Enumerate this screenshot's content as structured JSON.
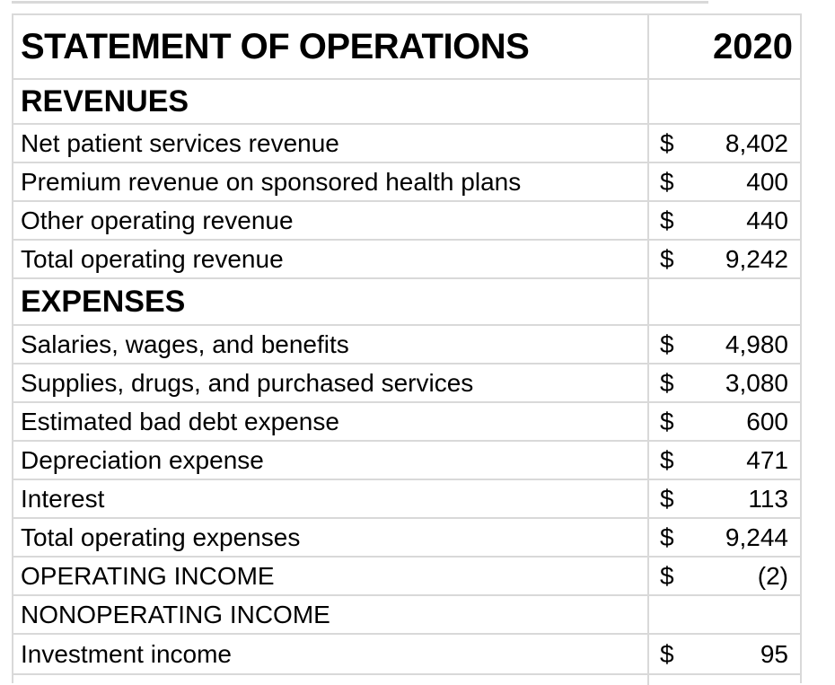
{
  "table": {
    "title": "STATEMENT OF OPERATIONS",
    "year": "2020",
    "currency_symbol": "$",
    "rows": [
      {
        "type": "section",
        "label": "REVENUES"
      },
      {
        "type": "data",
        "label": "Net patient services revenue",
        "value": "8,402"
      },
      {
        "type": "data",
        "label": "Premium revenue on sponsored health plans",
        "value": "400"
      },
      {
        "type": "data",
        "label": "Other operating revenue",
        "value": "440"
      },
      {
        "type": "data",
        "label": "Total operating revenue",
        "value": "9,242"
      },
      {
        "type": "section",
        "label": "EXPENSES"
      },
      {
        "type": "data",
        "label": "Salaries, wages, and benefits",
        "value": "4,980"
      },
      {
        "type": "data",
        "label": "Supplies, drugs, and purchased services",
        "value": "3,080"
      },
      {
        "type": "data",
        "label": "Estimated bad debt expense",
        "value": "600"
      },
      {
        "type": "data",
        "label": "Depreciation expense",
        "value": "471"
      },
      {
        "type": "data",
        "label": "Interest",
        "value": "113"
      },
      {
        "type": "data",
        "label": "Total operating expenses",
        "value": "9,244"
      },
      {
        "type": "data",
        "label": "OPERATING INCOME",
        "value": "(2)"
      },
      {
        "type": "header",
        "label": "NONOPERATING INCOME"
      },
      {
        "type": "data",
        "label": "Investment income",
        "value": "95"
      }
    ],
    "colors": {
      "border": "#d9d9d9",
      "text": "#000000",
      "background": "#ffffff"
    }
  }
}
